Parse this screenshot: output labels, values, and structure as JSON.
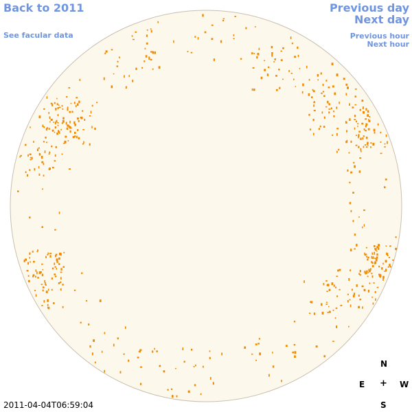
{
  "nav": {
    "back_label": "Back to 2011",
    "facular_label": "See facular data",
    "previous_day_label": "Previous day",
    "next_day_label": "Next day",
    "previous_hour_label": "Previous hour",
    "next_hour_label": "Next hour"
  },
  "compass": {
    "north": "N",
    "east": "E",
    "center": "+",
    "west": "W",
    "south": "S"
  },
  "timestamp": "2011-04-04T06:59:04",
  "colors": {
    "link": "#6f95e0",
    "disk_fill": "#fdf8ec",
    "disk_outline": "#c8bfae",
    "facula": "#f08a00"
  }
}
